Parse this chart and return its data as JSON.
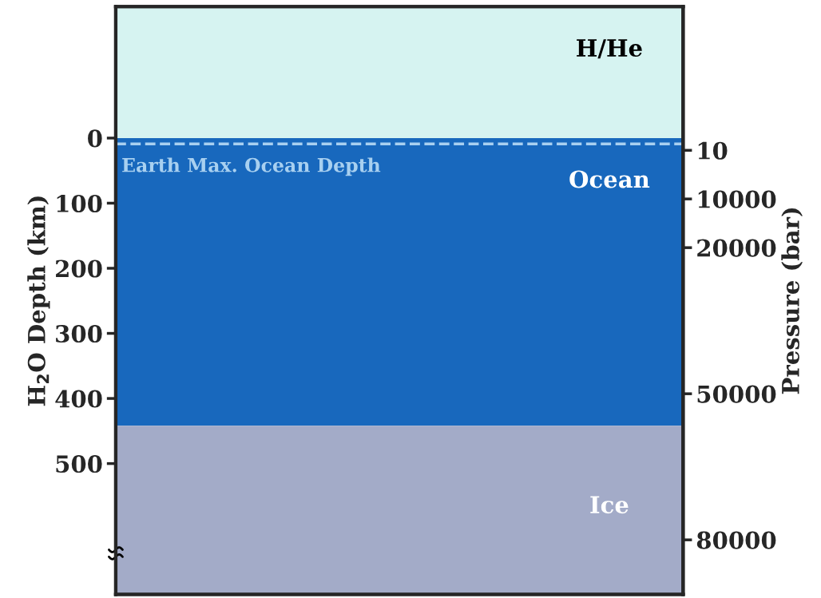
{
  "chart_data": {
    "type": "bar",
    "categories": [
      null
    ],
    "series": [
      {
        "name": "H/He",
        "color": "#d6f3f1",
        "base": [
          -202
        ],
        "values": [
          202
        ]
      },
      {
        "name": "Ocean",
        "color": "#1868bd",
        "base": [
          0
        ],
        "values": [
          442
        ]
      },
      {
        "name": "Ice",
        "color": "#a3abc8",
        "base": [
          442
        ],
        "values": [
          259
        ]
      }
    ],
    "ylabel": "H$_{2}$O Depth (km)",
    "y2label": "Pressure (bar)",
    "ylim": [
      701,
      -202
    ],
    "yticks": [
      0,
      100,
      200,
      300,
      400,
      500
    ],
    "ref_lines": [
      {
        "axis": "y",
        "value": 9,
        "label": "Earth Max. Ocean Depth",
        "color": "#a8d0f0",
        "line_style": "dashed"
      }
    ],
    "y2lim": [
      91200,
      -29500
    ],
    "y2ticks": [
      10,
      10000,
      20000,
      50000,
      80000
    ]
  }
}
